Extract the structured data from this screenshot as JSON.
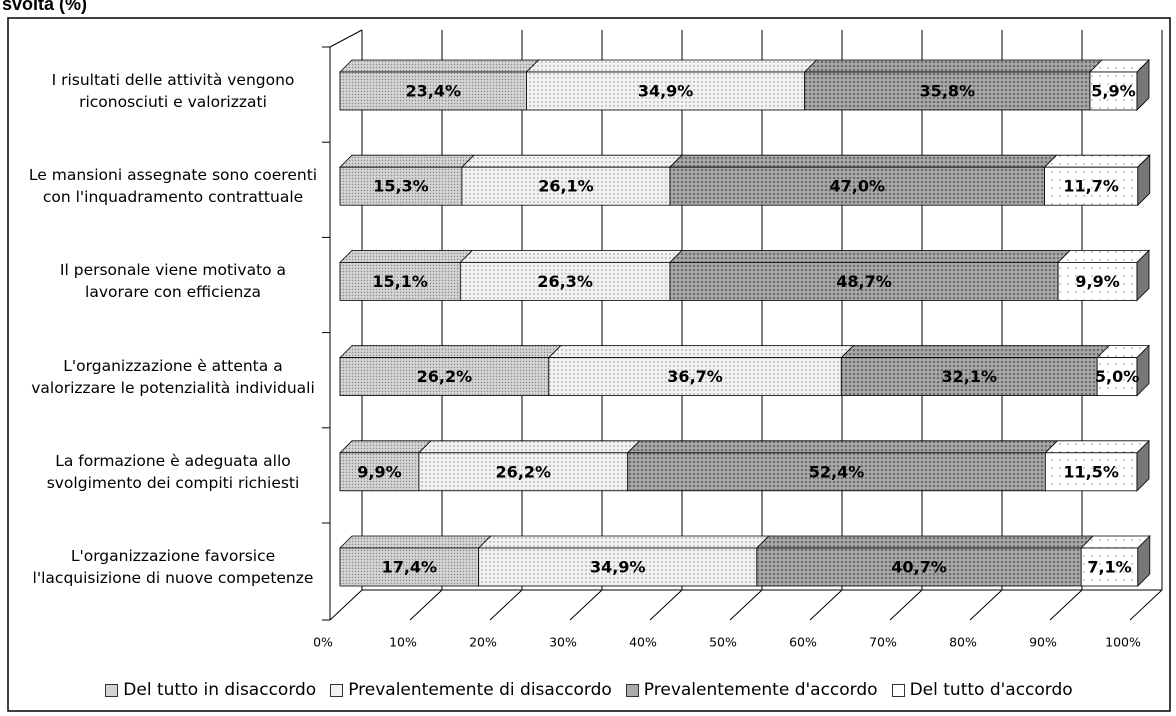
{
  "chart_data": {
    "type": "bar3d-stacked-horizontal",
    "title": "svolta (%)",
    "categories": [
      "I risultati delle attività vengono riconosciuti e valorizzati",
      "Le mansioni assegnate sono coerenti con l'inquadramento contrattuale",
      "Il personale viene motivato a lavorare con efficienza",
      "L'organizzazione è attenta a valorizzare le potenzialità individuali",
      "La formazione è adeguata allo svolgimento dei compiti richiesti",
      "L'organizzazione favorsice l'lacquisizione di nuove competenze"
    ],
    "series": [
      {
        "name": "Del tutto in disaccordo",
        "color": "#d4d4d4",
        "values": [
          23.4,
          15.3,
          15.1,
          26.2,
          9.9,
          17.4
        ],
        "value_labels": [
          "23,4%",
          "15,3%",
          "15,1%",
          "26,2%",
          "9,9%",
          "17,4%"
        ]
      },
      {
        "name": "Prevalentemente di disaccordo",
        "color": "#f2f2f2",
        "values": [
          34.9,
          26.1,
          26.3,
          36.7,
          26.2,
          34.9
        ],
        "value_labels": [
          "34,9%",
          "26,1%",
          "26,3%",
          "36,7%",
          "26,2%",
          "34,9%"
        ]
      },
      {
        "name": "Prevalentemente d'accordo",
        "color": "#ababab",
        "values": [
          35.8,
          47.0,
          48.7,
          32.1,
          52.4,
          40.7
        ],
        "value_labels": [
          "35,8%",
          "47,0%",
          "48,7%",
          "32,1%",
          "52,4%",
          "40,7%"
        ]
      },
      {
        "name": "Del tutto d'accordo",
        "color": "#ffffff",
        "values": [
          5.9,
          11.7,
          9.9,
          5.0,
          11.5,
          7.1
        ],
        "value_labels": [
          "5,9%",
          "11,7%",
          "9,9%",
          "5,0%",
          "11,5%",
          "7,1%"
        ]
      }
    ],
    "xlim": [
      0,
      100
    ],
    "xticks": [
      {
        "value": 0,
        "label": "0%"
      },
      {
        "value": 10,
        "label": "10%"
      },
      {
        "value": 20,
        "label": "20%"
      },
      {
        "value": 30,
        "label": "30%"
      },
      {
        "value": 40,
        "label": "40%"
      },
      {
        "value": 50,
        "label": "50%"
      },
      {
        "value": 60,
        "label": "60%"
      },
      {
        "value": 70,
        "label": "70%"
      },
      {
        "value": 80,
        "label": "80%"
      },
      {
        "value": 90,
        "label": "90%"
      },
      {
        "value": 100,
        "label": "100%"
      }
    ],
    "grid": true,
    "legend": "bottom"
  }
}
